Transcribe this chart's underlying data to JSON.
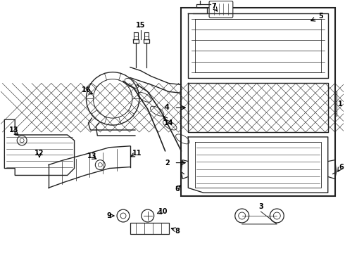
{
  "background_color": "#ffffff",
  "line_color": "#222222",
  "figsize": [
    4.9,
    3.6
  ],
  "dpi": 100
}
